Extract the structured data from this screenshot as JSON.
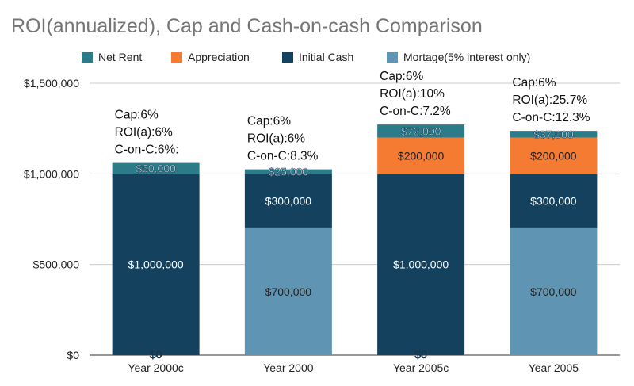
{
  "chart_data": {
    "type": "bar",
    "stacked": true,
    "title": "ROI(annualized), Cap and Cash-on-cash Comparison",
    "categories": [
      "Year 2000c",
      "Year 2000",
      "Year 2005c",
      "Year 2005"
    ],
    "ylim": [
      0,
      1500000
    ],
    "yticks": [
      {
        "value": 0,
        "label": "$0"
      },
      {
        "value": 500000,
        "label": "$500,000"
      },
      {
        "value": 1000000,
        "label": "$1,000,000"
      },
      {
        "value": 1500000,
        "label": "$1,500,000"
      }
    ],
    "grid": true,
    "legend_position": "top",
    "series": [
      {
        "name": "Mortage(5% interest only)",
        "color": "#5f95b3",
        "label_color": "#1f1f1f",
        "values": [
          0,
          700000,
          0,
          700000
        ],
        "labels": [
          "$0",
          "$700,000",
          "$0",
          "$700,000"
        ]
      },
      {
        "name": "Initial Cash",
        "color": "#14425e",
        "label_color": "#ffffff",
        "values": [
          1000000,
          300000,
          1000000,
          300000
        ],
        "labels": [
          "$1,000,000",
          "$300,000",
          "$1,000,000",
          "$300,000"
        ]
      },
      {
        "name": "Appreciation",
        "color": "#f57b32",
        "label_color": "#1f1f1f",
        "values": [
          0,
          0,
          200000,
          200000
        ],
        "labels": [
          "",
          "",
          "$200,000",
          "$200,000"
        ]
      },
      {
        "name": "Net Rent",
        "color": "#2c7b88",
        "label_color": "#ffffff",
        "values": [
          60000,
          25000,
          72000,
          37000
        ],
        "labels": [
          "$60,000",
          "$25,000",
          "$72,000",
          "$37,000"
        ]
      }
    ],
    "legend_order": [
      3,
      2,
      1,
      0
    ],
    "annotations": [
      [
        "Cap:6%",
        "ROI(a):6%",
        "C-on-C:6%:"
      ],
      [
        "Cap:6%",
        "ROI(a):6%",
        "C-on-C:8.3%"
      ],
      [
        "Cap:6%",
        "ROI(a):10%",
        "C-on-C:7.2%"
      ],
      [
        "Cap:6%",
        "ROI(a):25.7%",
        "C-on-C:12.3%"
      ]
    ]
  }
}
